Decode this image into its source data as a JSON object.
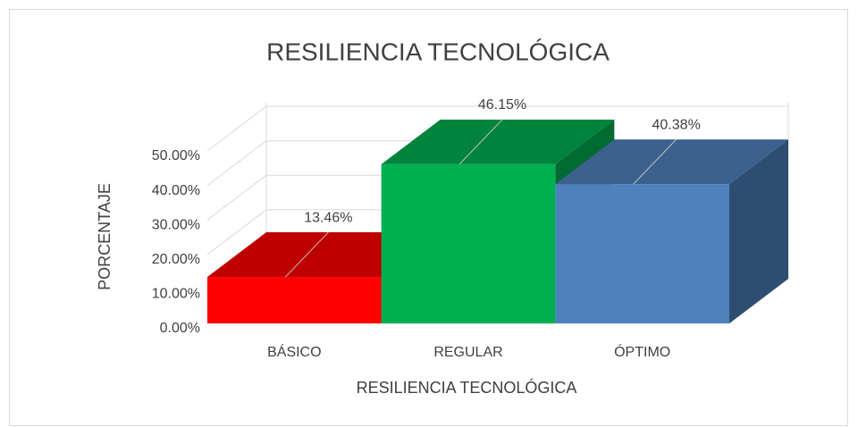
{
  "chart_data": {
    "type": "bar",
    "title": "RESILIENCIA TECNOLÓGICA",
    "x_label": "RESILIENCIA TECNOLÓGICA",
    "y_label": "PORCENTAJE",
    "categories": [
      "BÁSICO",
      "REGULAR",
      "ÓPTIMO"
    ],
    "values": [
      13.46,
      46.15,
      40.38
    ],
    "value_labels": [
      "13.46%",
      "46.15%",
      "40.38%"
    ],
    "colors": [
      "#ff0000",
      "#00b050",
      "#4f81bd"
    ],
    "ylim": [
      0,
      50
    ],
    "yticks": [
      {
        "value": 0,
        "label": "0.00%"
      },
      {
        "value": 10,
        "label": "10.00%"
      },
      {
        "value": 20,
        "label": "20.00%"
      },
      {
        "value": 30,
        "label": "30.00%"
      },
      {
        "value": 40,
        "label": "40.00%"
      },
      {
        "value": 50,
        "label": "50.00%"
      }
    ],
    "grid": true
  }
}
